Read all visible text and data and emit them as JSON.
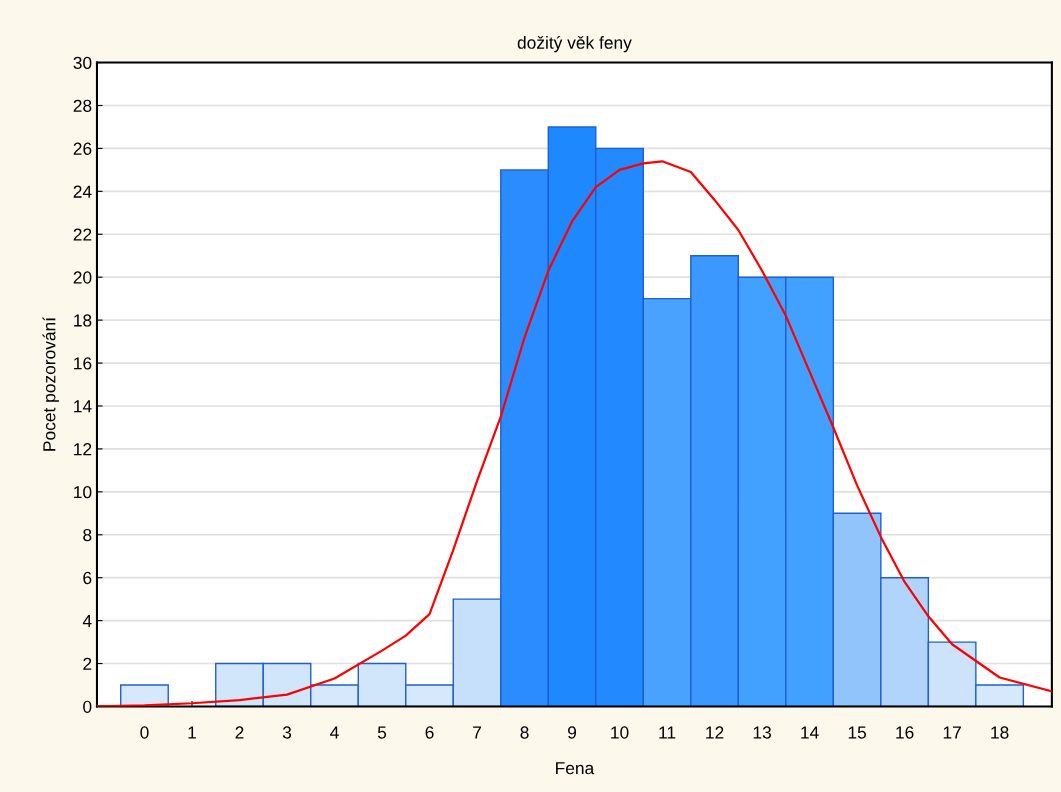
{
  "chart_data": {
    "type": "histogram",
    "title": "dožitý věk feny",
    "xlabel": "Fena",
    "ylabel": "Pocet pozorování",
    "bins": [
      -0.5,
      0.5,
      1.5,
      2.5,
      3.5,
      4.5,
      5.5,
      6.5,
      7.5,
      8.5,
      9.5,
      10.5,
      11.5,
      12.5,
      13.5,
      14.5,
      15.5,
      16.5,
      17.5,
      18.5
    ],
    "values": [
      1,
      0,
      2,
      2,
      1,
      2,
      1,
      5,
      25,
      27,
      26,
      19,
      21,
      20,
      20,
      9,
      6,
      3,
      1
    ],
    "colors": [
      "#d6e8fb",
      "#d6e8fb",
      "#d2e6fb",
      "#d2e6fb",
      "#d6e8fb",
      "#d2e6fb",
      "#d6e8fb",
      "#c6e0fb",
      "#2a8cff",
      "#1e88ff",
      "#2289ff",
      "#4aa2ff",
      "#3a98ff",
      "#42a0ff",
      "#42a0ff",
      "#90c4fb",
      "#b0d4fb",
      "#cce3fb",
      "#d6e8fb"
    ],
    "series": [
      {
        "type": "line",
        "color": "#ff0000",
        "x": [
          -1,
          0,
          1,
          2,
          3,
          4,
          5,
          5.5,
          6,
          6.5,
          7,
          7.5,
          8,
          8.5,
          9,
          9.5,
          10,
          10.5,
          10.9,
          11.5,
          12,
          12.5,
          13,
          13.5,
          14,
          14.5,
          15,
          15.5,
          16,
          16.5,
          17,
          18,
          19.1
        ],
        "values": [
          0,
          0.05,
          0.15,
          0.3,
          0.55,
          1.3,
          2.6,
          3.3,
          4.3,
          7.3,
          10.5,
          13.5,
          17.2,
          20.3,
          22.6,
          24.2,
          25.0,
          25.3,
          25.4,
          24.9,
          23.6,
          22.2,
          20.3,
          18.2,
          15.6,
          13.0,
          10.3,
          7.9,
          5.8,
          4.2,
          2.9,
          1.35,
          0.7
        ]
      }
    ],
    "xlim": [
      -1,
      19.1
    ],
    "xticks": [
      0,
      1,
      2,
      3,
      4,
      5,
      6,
      7,
      8,
      9,
      10,
      11,
      12,
      13,
      14,
      15,
      16,
      17,
      18
    ],
    "ylim": [
      0,
      30
    ],
    "yticks": [
      0,
      2,
      4,
      6,
      8,
      10,
      12,
      14,
      16,
      18,
      20,
      22,
      24,
      26,
      28,
      30
    ],
    "grid": "y",
    "legend": false
  }
}
